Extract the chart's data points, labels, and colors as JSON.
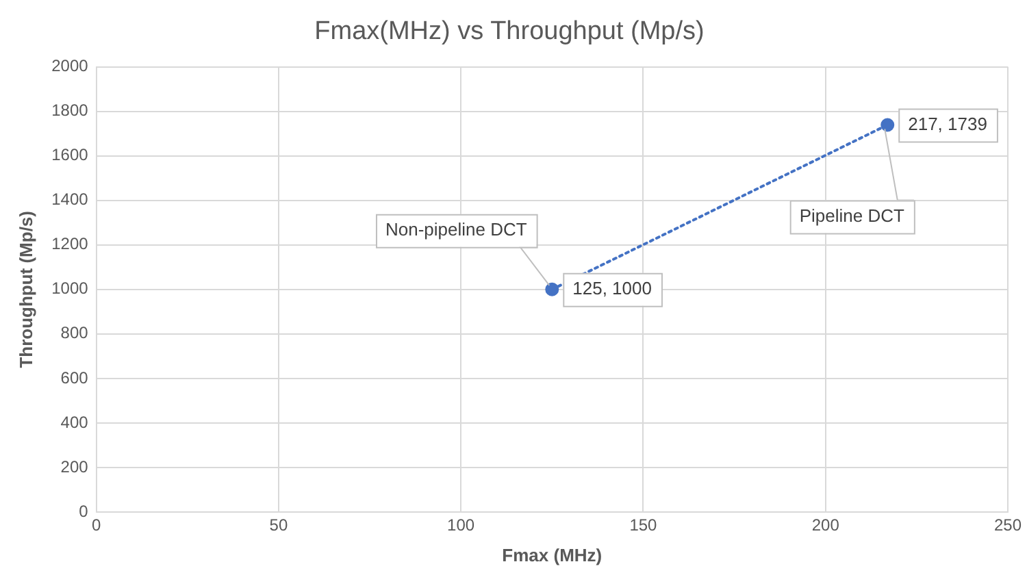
{
  "chart_data": {
    "type": "line",
    "title": "Fmax(MHz) vs Throughput (Mp/s)",
    "xlabel": "Fmax (MHz)",
    "ylabel": "Throughput (Mp/s)",
    "x": [
      125,
      217
    ],
    "series": [
      {
        "color": "#4472c4",
        "values": [
          1000,
          1739
        ],
        "value_labels": [
          "125, 1000",
          "217, 1739"
        ]
      }
    ],
    "xlim": [
      0,
      250
    ],
    "xticks": [
      0,
      50,
      100,
      150,
      200,
      250
    ],
    "ylim": [
      0,
      2000
    ],
    "yticks": [
      0,
      200,
      400,
      600,
      800,
      1000,
      1200,
      1400,
      1600,
      1800,
      2000
    ],
    "grid": true,
    "legend": false,
    "marker": "circle",
    "line_style": "dotted",
    "annotations": [
      {
        "text": "Non-pipeline DCT",
        "x": 125,
        "y": 1000
      },
      {
        "text": "Pipeline DCT",
        "x": 217,
        "y": 1739
      }
    ]
  }
}
